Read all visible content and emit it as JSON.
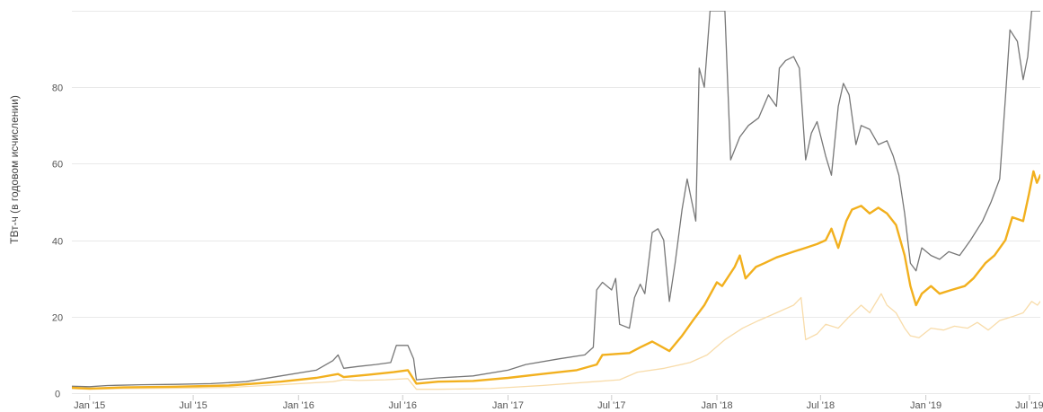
{
  "chart_data": {
    "type": "line",
    "ylabel": "ТВт-ч (в годовом исчислении)",
    "ylim": [
      0,
      100
    ],
    "xlim": [
      "2014-12-01",
      "2019-07-20"
    ],
    "grid": true,
    "y_ticks": [
      {
        "value": 0,
        "label": "0"
      },
      {
        "value": 20,
        "label": "20"
      },
      {
        "value": 40,
        "label": "40"
      },
      {
        "value": 60,
        "label": "60"
      },
      {
        "value": 80,
        "label": "80"
      }
    ],
    "x_ticks": [
      {
        "date": "2015-01-01",
        "label": "Jan '15"
      },
      {
        "date": "2015-07-01",
        "label": "Jul '15"
      },
      {
        "date": "2016-01-01",
        "label": "Jan '16"
      },
      {
        "date": "2016-07-01",
        "label": "Jul '16"
      },
      {
        "date": "2017-01-01",
        "label": "Jan '17"
      },
      {
        "date": "2017-07-01",
        "label": "Jul '17"
      },
      {
        "date": "2018-01-01",
        "label": "Jan '18"
      },
      {
        "date": "2018-07-01",
        "label": "Jul '18"
      },
      {
        "date": "2019-01-01",
        "label": "Jan '19"
      },
      {
        "date": "2019-07-01",
        "label": "Jul '19"
      }
    ],
    "series": [
      {
        "color": "#f8dcaa",
        "width": 1.3,
        "points": [
          [
            "2014-12-01",
            1.2
          ],
          [
            "2015-01-01",
            1.0
          ],
          [
            "2015-03-01",
            1.2
          ],
          [
            "2015-06-01",
            1.3
          ],
          [
            "2015-09-01",
            1.5
          ],
          [
            "2015-12-01",
            2.2
          ],
          [
            "2016-03-01",
            3.0
          ],
          [
            "2016-03-20",
            3.5
          ],
          [
            "2016-04-15",
            3.3
          ],
          [
            "2016-06-01",
            3.5
          ],
          [
            "2016-07-10",
            3.8
          ],
          [
            "2016-07-25",
            1.0
          ],
          [
            "2016-09-01",
            1.0
          ],
          [
            "2016-12-01",
            1.2
          ],
          [
            "2017-03-01",
            2.0
          ],
          [
            "2017-06-01",
            3.0
          ],
          [
            "2017-07-15",
            3.5
          ],
          [
            "2017-08-15",
            5.5
          ],
          [
            "2017-10-01",
            6.5
          ],
          [
            "2017-11-15",
            8.0
          ],
          [
            "2017-12-15",
            10.0
          ],
          [
            "2018-01-15",
            14.0
          ],
          [
            "2018-02-15",
            17.0
          ],
          [
            "2018-03-15",
            19.0
          ],
          [
            "2018-04-15",
            21.0
          ],
          [
            "2018-05-15",
            23.0
          ],
          [
            "2018-05-28",
            25.0
          ],
          [
            "2018-06-05",
            14.0
          ],
          [
            "2018-06-25",
            15.5
          ],
          [
            "2018-07-10",
            18.0
          ],
          [
            "2018-08-01",
            17.0
          ],
          [
            "2018-08-20",
            20.0
          ],
          [
            "2018-09-10",
            23.0
          ],
          [
            "2018-09-25",
            21.0
          ],
          [
            "2018-10-15",
            26.0
          ],
          [
            "2018-10-25",
            23.0
          ],
          [
            "2018-11-10",
            21.0
          ],
          [
            "2018-11-25",
            17.0
          ],
          [
            "2018-12-05",
            15.0
          ],
          [
            "2018-12-20",
            14.5
          ],
          [
            "2019-01-10",
            17.0
          ],
          [
            "2019-02-01",
            16.5
          ],
          [
            "2019-02-20",
            17.5
          ],
          [
            "2019-03-15",
            17.0
          ],
          [
            "2019-04-01",
            18.5
          ],
          [
            "2019-04-20",
            16.5
          ],
          [
            "2019-05-10",
            19.0
          ],
          [
            "2019-06-01",
            20.0
          ],
          [
            "2019-06-20",
            21.0
          ],
          [
            "2019-07-05",
            24.0
          ],
          [
            "2019-07-15",
            23.0
          ],
          [
            "2019-07-20",
            24.0
          ]
        ]
      },
      {
        "color": "#777777",
        "width": 1.3,
        "points": [
          [
            "2014-12-01",
            1.8
          ],
          [
            "2015-01-01",
            1.7
          ],
          [
            "2015-02-01",
            2.0
          ],
          [
            "2015-04-01",
            2.2
          ],
          [
            "2015-06-01",
            2.3
          ],
          [
            "2015-08-01",
            2.5
          ],
          [
            "2015-10-01",
            3.0
          ],
          [
            "2015-12-01",
            4.5
          ],
          [
            "2016-02-01",
            6.0
          ],
          [
            "2016-03-01",
            8.5
          ],
          [
            "2016-03-10",
            10.0
          ],
          [
            "2016-03-20",
            6.5
          ],
          [
            "2016-04-15",
            7.0
          ],
          [
            "2016-05-15",
            7.5
          ],
          [
            "2016-06-10",
            8.0
          ],
          [
            "2016-06-20",
            12.5
          ],
          [
            "2016-07-10",
            12.5
          ],
          [
            "2016-07-20",
            9.0
          ],
          [
            "2016-07-25",
            3.5
          ],
          [
            "2016-09-01",
            4.0
          ],
          [
            "2016-11-01",
            4.5
          ],
          [
            "2017-01-01",
            6.0
          ],
          [
            "2017-02-01",
            7.5
          ],
          [
            "2017-04-01",
            9.0
          ],
          [
            "2017-05-15",
            10.0
          ],
          [
            "2017-05-30",
            12.0
          ],
          [
            "2017-06-05",
            27.0
          ],
          [
            "2017-06-15",
            29.0
          ],
          [
            "2017-07-01",
            27.0
          ],
          [
            "2017-07-08",
            30.0
          ],
          [
            "2017-07-15",
            18.0
          ],
          [
            "2017-08-01",
            17.0
          ],
          [
            "2017-08-10",
            25.0
          ],
          [
            "2017-08-20",
            28.5
          ],
          [
            "2017-08-28",
            26.0
          ],
          [
            "2017-09-10",
            42.0
          ],
          [
            "2017-09-20",
            43.0
          ],
          [
            "2017-09-30",
            40.0
          ],
          [
            "2017-10-10",
            24.0
          ],
          [
            "2017-10-20",
            34.0
          ],
          [
            "2017-11-01",
            48.0
          ],
          [
            "2017-11-10",
            56.0
          ],
          [
            "2017-11-25",
            45.0
          ],
          [
            "2017-12-01",
            85.0
          ],
          [
            "2017-12-10",
            80.0
          ],
          [
            "2017-12-20",
            100.0
          ],
          [
            "2018-01-15",
            100.0
          ],
          [
            "2018-01-25",
            61.0
          ],
          [
            "2018-02-10",
            67.0
          ],
          [
            "2018-02-25",
            70.0
          ],
          [
            "2018-03-15",
            72.0
          ],
          [
            "2018-04-01",
            78.0
          ],
          [
            "2018-04-15",
            75.0
          ],
          [
            "2018-04-20",
            85.0
          ],
          [
            "2018-05-01",
            87.0
          ],
          [
            "2018-05-15",
            88.0
          ],
          [
            "2018-05-25",
            85.0
          ],
          [
            "2018-06-05",
            61.0
          ],
          [
            "2018-06-15",
            68.0
          ],
          [
            "2018-06-25",
            71.0
          ],
          [
            "2018-07-10",
            62.0
          ],
          [
            "2018-07-20",
            57.0
          ],
          [
            "2018-08-01",
            75.0
          ],
          [
            "2018-08-10",
            81.0
          ],
          [
            "2018-08-20",
            78.0
          ],
          [
            "2018-09-01",
            65.0
          ],
          [
            "2018-09-10",
            70.0
          ],
          [
            "2018-09-25",
            69.0
          ],
          [
            "2018-10-10",
            65.0
          ],
          [
            "2018-10-25",
            66.0
          ],
          [
            "2018-11-05",
            62.0
          ],
          [
            "2018-11-15",
            57.0
          ],
          [
            "2018-11-25",
            47.0
          ],
          [
            "2018-12-05",
            34.0
          ],
          [
            "2018-12-15",
            32.0
          ],
          [
            "2018-12-25",
            38.0
          ],
          [
            "2019-01-10",
            36.0
          ],
          [
            "2019-01-25",
            35.0
          ],
          [
            "2019-02-10",
            37.0
          ],
          [
            "2019-03-01",
            36.0
          ],
          [
            "2019-03-20",
            40.0
          ],
          [
            "2019-04-10",
            45.0
          ],
          [
            "2019-04-25",
            50.0
          ],
          [
            "2019-05-10",
            56.0
          ],
          [
            "2019-05-20",
            77.0
          ],
          [
            "2019-05-28",
            95.0
          ],
          [
            "2019-06-10",
            92.0
          ],
          [
            "2019-06-20",
            82.0
          ],
          [
            "2019-06-28",
            88.0
          ],
          [
            "2019-07-05",
            100.0
          ],
          [
            "2019-07-20",
            100.0
          ]
        ]
      },
      {
        "color": "#f2b01e",
        "width": 2.4,
        "points": [
          [
            "2014-12-01",
            1.4
          ],
          [
            "2015-01-01",
            1.2
          ],
          [
            "2015-03-01",
            1.5
          ],
          [
            "2015-06-01",
            1.7
          ],
          [
            "2015-09-01",
            2.0
          ],
          [
            "2015-12-01",
            3.0
          ],
          [
            "2016-02-01",
            4.0
          ],
          [
            "2016-03-10",
            5.0
          ],
          [
            "2016-03-20",
            4.2
          ],
          [
            "2016-05-01",
            4.8
          ],
          [
            "2016-06-15",
            5.5
          ],
          [
            "2016-07-10",
            6.0
          ],
          [
            "2016-07-25",
            2.5
          ],
          [
            "2016-09-01",
            3.0
          ],
          [
            "2016-11-01",
            3.2
          ],
          [
            "2017-01-01",
            4.0
          ],
          [
            "2017-03-01",
            5.0
          ],
          [
            "2017-05-01",
            6.0
          ],
          [
            "2017-06-05",
            7.5
          ],
          [
            "2017-06-15",
            10.0
          ],
          [
            "2017-08-01",
            10.5
          ],
          [
            "2017-08-20",
            12.0
          ],
          [
            "2017-09-10",
            13.5
          ],
          [
            "2017-10-10",
            11.0
          ],
          [
            "2017-11-01",
            15.0
          ],
          [
            "2017-11-20",
            19.0
          ],
          [
            "2017-12-10",
            23.0
          ],
          [
            "2018-01-01",
            29.0
          ],
          [
            "2018-01-10",
            28.0
          ],
          [
            "2018-02-01",
            33.0
          ],
          [
            "2018-02-10",
            36.0
          ],
          [
            "2018-02-20",
            30.0
          ],
          [
            "2018-03-10",
            33.0
          ],
          [
            "2018-03-25",
            34.0
          ],
          [
            "2018-04-15",
            35.5
          ],
          [
            "2018-05-15",
            37.0
          ],
          [
            "2018-06-05",
            38.0
          ],
          [
            "2018-06-25",
            39.0
          ],
          [
            "2018-07-10",
            40.0
          ],
          [
            "2018-07-20",
            43.0
          ],
          [
            "2018-08-01",
            38.0
          ],
          [
            "2018-08-15",
            45.0
          ],
          [
            "2018-08-25",
            48.0
          ],
          [
            "2018-09-10",
            49.0
          ],
          [
            "2018-09-25",
            47.0
          ],
          [
            "2018-10-10",
            48.5
          ],
          [
            "2018-10-25",
            47.0
          ],
          [
            "2018-11-10",
            44.0
          ],
          [
            "2018-11-25",
            36.0
          ],
          [
            "2018-12-05",
            28.0
          ],
          [
            "2018-12-15",
            23.0
          ],
          [
            "2018-12-25",
            26.0
          ],
          [
            "2019-01-10",
            28.0
          ],
          [
            "2019-01-25",
            26.0
          ],
          [
            "2019-02-15",
            27.0
          ],
          [
            "2019-03-10",
            28.0
          ],
          [
            "2019-03-25",
            30.0
          ],
          [
            "2019-04-15",
            34.0
          ],
          [
            "2019-05-01",
            36.0
          ],
          [
            "2019-05-20",
            40.0
          ],
          [
            "2019-06-01",
            46.0
          ],
          [
            "2019-06-20",
            45.0
          ],
          [
            "2019-06-30",
            52.0
          ],
          [
            "2019-07-08",
            58.0
          ],
          [
            "2019-07-14",
            55.0
          ],
          [
            "2019-07-20",
            57.0
          ]
        ]
      }
    ]
  }
}
